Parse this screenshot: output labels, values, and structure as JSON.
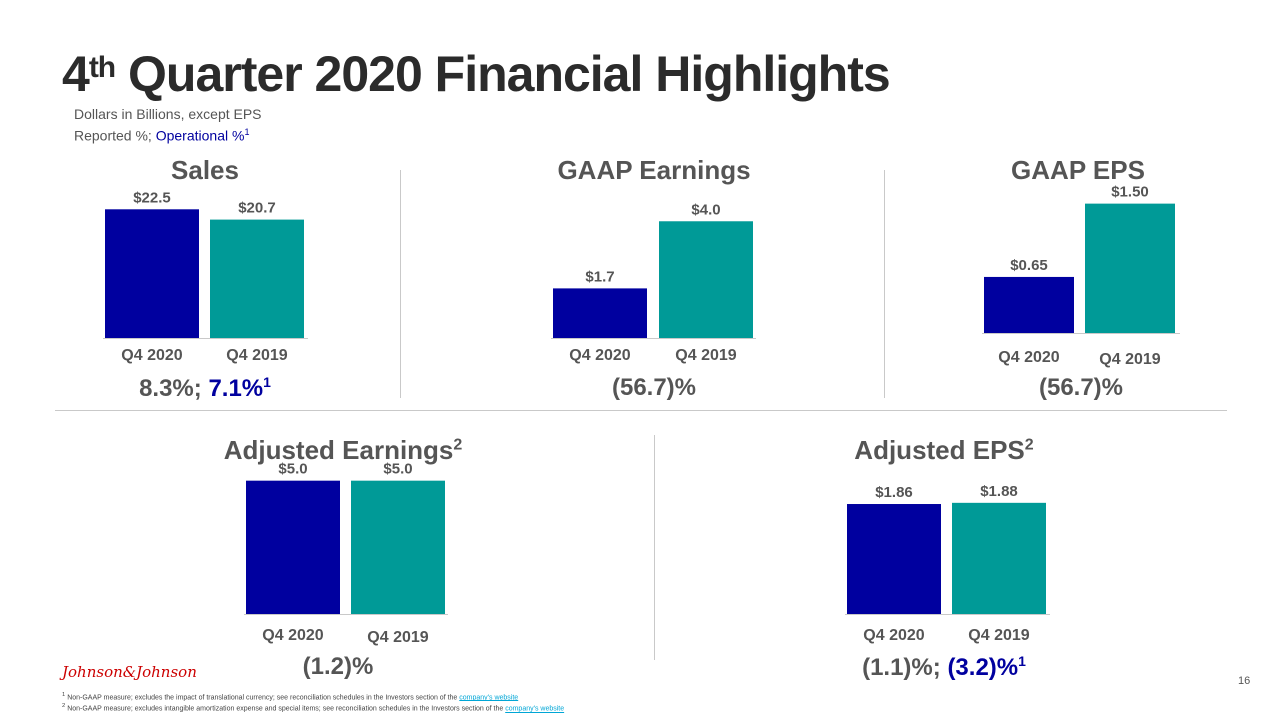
{
  "title": {
    "prefix": "4",
    "sup": "th",
    "rest": " Quarter 2020 Financial Highlights"
  },
  "subtitle": {
    "line1": "Dollars in Billions, except EPS",
    "line2_prefix": "Reported %; ",
    "line2_operational": "Operational %",
    "line2_sup": "1"
  },
  "colors": {
    "q4_2020": "#00009f",
    "q4_2019": "#009a97",
    "text": "#555555"
  },
  "panels": {
    "sales": {
      "title": "Sales",
      "growth_reported": "8.3%; ",
      "growth_operational": "7.1%",
      "growth_sup": "1"
    },
    "gaap_earnings": {
      "title": "GAAP Earnings",
      "growth": "(56.7)%"
    },
    "gaap_eps": {
      "title": "GAAP EPS",
      "growth": "(56.7)%"
    },
    "adj_earnings": {
      "title": "Adjusted Earnings",
      "title_sup": "2",
      "growth": "(1.2)%"
    },
    "adj_eps": {
      "title": "Adjusted EPS",
      "title_sup": "2",
      "growth_reported": "(1.1)%; ",
      "growth_operational": "(3.2)%",
      "growth_sup": "1"
    }
  },
  "chart_data": [
    {
      "type": "bar",
      "title": "Sales",
      "categories": [
        "Q4 2020",
        "Q4 2019"
      ],
      "values": [
        22.5,
        20.7
      ],
      "labels": [
        "$22.5",
        "$20.7"
      ],
      "ylim": [
        0,
        25
      ]
    },
    {
      "type": "bar",
      "title": "GAAP Earnings",
      "categories": [
        "Q4 2020",
        "Q4 2019"
      ],
      "values": [
        1.7,
        4.0
      ],
      "labels": [
        "$1.7",
        "$4.0"
      ],
      "ylim": [
        0,
        4.9
      ]
    },
    {
      "type": "bar",
      "title": "GAAP EPS",
      "categories": [
        "Q4 2020",
        "Q4 2019"
      ],
      "values": [
        0.65,
        1.5
      ],
      "labels": [
        "$0.65",
        "$1.50"
      ],
      "ylim": [
        0,
        1.6
      ]
    },
    {
      "type": "bar",
      "title": "Adjusted Earnings",
      "categories": [
        "Q4 2020",
        "Q4 2019"
      ],
      "values": [
        5.0,
        5.0
      ],
      "labels": [
        "$5.0",
        "$5.0"
      ],
      "ylim": [
        0,
        5.1
      ]
    },
    {
      "type": "bar",
      "title": "Adjusted EPS",
      "categories": [
        "Q4 2020",
        "Q4 2019"
      ],
      "values": [
        1.86,
        1.88
      ],
      "labels": [
        "$1.86",
        "$1.88"
      ],
      "ylim": [
        0,
        2.3
      ]
    }
  ],
  "logo": {
    "text": "Johnson&Johnson"
  },
  "page_number": "16",
  "footnotes": {
    "f1_sup": "1",
    "f1_text": " Non-GAAP measure; excludes the impact of translational currency; see reconciliation schedules in the Investors section of the ",
    "f1_link": "company's website",
    "f2_sup": "2",
    "f2_text": " Non-GAAP measure; excludes intangible amortization expense and special items; see reconciliation schedules in the Investors section of the ",
    "f2_link": "company's website"
  }
}
